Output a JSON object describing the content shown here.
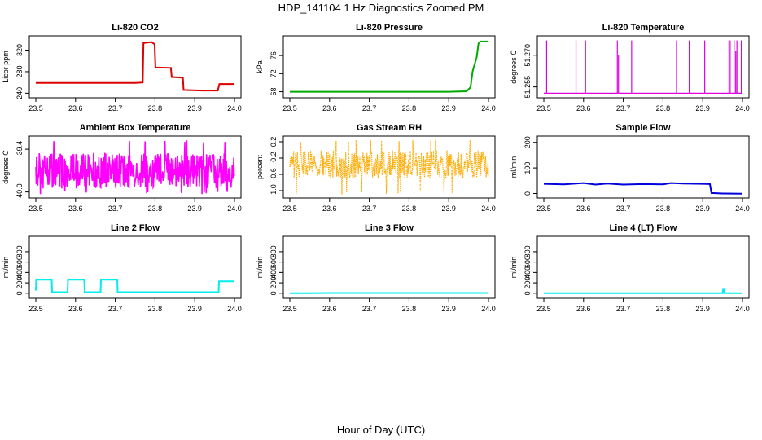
{
  "figure": {
    "title": "HDP_141104  1 Hz Diagnostics Zoomed PM",
    "xlabel": "Hour of Day (UTC)"
  },
  "chart_data": [
    {
      "type": "line",
      "title": "Li-820 CO2",
      "ylabel": "Licor ppm",
      "color": "#dd0000",
      "xlim": [
        23.5,
        24.0
      ],
      "ylim": [
        236,
        342
      ],
      "yticks": [
        240,
        280,
        320
      ],
      "xticks": [
        23.5,
        23.6,
        23.7,
        23.8,
        23.9,
        24.0
      ],
      "series": [
        {
          "x": [
            23.5,
            23.55,
            23.6,
            23.65,
            23.7,
            23.75,
            23.769,
            23.771,
            23.79,
            23.791,
            23.799,
            23.801,
            23.84,
            23.842,
            23.87,
            23.872,
            23.92,
            23.93,
            23.95,
            23.958,
            23.962,
            24.0
          ],
          "y": [
            259,
            259,
            259,
            259,
            259,
            259,
            260,
            333,
            335,
            335,
            331,
            288,
            287,
            270,
            269,
            246,
            245,
            245,
            245,
            245,
            257,
            257
          ]
        }
      ]
    },
    {
      "type": "line",
      "title": "Li-820 Pressure",
      "ylabel": "kPa",
      "color": "#00aa00",
      "xlim": [
        23.5,
        24.0
      ],
      "ylim": [
        67.2,
        79.8
      ],
      "yticks": [
        68,
        72,
        76
      ],
      "xticks": [
        23.5,
        23.6,
        23.7,
        23.8,
        23.9,
        24.0
      ],
      "series": [
        {
          "x": [
            23.5,
            23.6,
            23.7,
            23.8,
            23.9,
            23.945,
            23.955,
            23.96,
            23.965,
            23.97,
            23.975,
            23.98,
            24.0
          ],
          "y": [
            68.0,
            68.0,
            68.0,
            68.0,
            68.0,
            68.1,
            69.0,
            72.5,
            74.0,
            75.5,
            78.7,
            79.1,
            79.1
          ]
        }
      ]
    },
    {
      "type": "line",
      "title": "Li-820 Temperature",
      "ylabel": "degrees C",
      "color": "#dd00dd",
      "xlim": [
        23.5,
        24.0
      ],
      "ylim": [
        51.251,
        51.278
      ],
      "yticks": [
        51.255,
        51.27
      ],
      "ytick_labels": [
        "51.255",
        "51.270"
      ],
      "xticks": [
        23.5,
        23.6,
        23.7,
        23.8,
        23.9,
        24.0
      ],
      "baseline": 51.252,
      "spikes": [
        {
          "x": 23.507,
          "y": 51.277
        },
        {
          "x": 23.581,
          "y": 51.277
        },
        {
          "x": 23.605,
          "y": 51.277
        },
        {
          "x": 23.685,
          "y": 51.277
        },
        {
          "x": 23.688,
          "y": 51.27
        },
        {
          "x": 23.721,
          "y": 51.277
        },
        {
          "x": 23.834,
          "y": 51.277
        },
        {
          "x": 23.866,
          "y": 51.277
        },
        {
          "x": 23.905,
          "y": 51.277
        },
        {
          "x": 23.966,
          "y": 51.277
        },
        {
          "x": 23.969,
          "y": 51.277
        },
        {
          "x": 23.979,
          "y": 51.277
        },
        {
          "x": 23.983,
          "y": 51.272
        },
        {
          "x": 23.986,
          "y": 51.277
        },
        {
          "x": 23.997,
          "y": 51.277
        }
      ]
    },
    {
      "type": "line",
      "title": "Ambient Box Temperature",
      "ylabel": "degrees C",
      "color": "#ff00ff",
      "xlim": [
        23.5,
        24.0
      ],
      "ylim": [
        -40.05,
        -39.25
      ],
      "yticks": [
        -40.0,
        -39.4
      ],
      "ytick_labels": [
        "-40.0",
        "-39.4"
      ],
      "xticks": [
        23.5,
        23.6,
        23.7,
        23.8,
        23.9,
        24.0
      ],
      "noise": {
        "low": -39.95,
        "high": -39.45,
        "outlier_low": -40.03,
        "outlier_high": -39.27,
        "style": "dense"
      }
    },
    {
      "type": "line",
      "title": "Gas Stream RH",
      "ylabel": "percent",
      "color": "#ffaa00",
      "xlim": [
        23.5,
        24.0
      ],
      "ylim": [
        -1.12,
        0.28
      ],
      "yticks": [
        -1.0,
        -0.6,
        -0.2,
        0.2
      ],
      "ytick_labels": [
        "-1.0",
        "-0.6",
        "-0.2",
        "0.2"
      ],
      "xticks": [
        23.5,
        23.6,
        23.7,
        23.8,
        23.9,
        24.0
      ],
      "noise": {
        "low": -0.7,
        "high": 0.0,
        "outlier_low": -1.1,
        "outlier_high": 0.25,
        "style": "dotted"
      }
    },
    {
      "type": "line",
      "title": "Sample Flow",
      "ylabel": "ml/min",
      "color": "#0000dd",
      "xlim": [
        23.5,
        24.0
      ],
      "ylim": [
        -8,
        215
      ],
      "yticks": [
        0,
        100,
        200
      ],
      "xticks": [
        23.5,
        23.6,
        23.7,
        23.8,
        23.9,
        24.0
      ],
      "series": [
        {
          "x": [
            23.5,
            23.55,
            23.6,
            23.63,
            23.66,
            23.7,
            23.75,
            23.8,
            23.82,
            23.85,
            23.9,
            23.918,
            23.922,
            23.95,
            24.0
          ],
          "y": [
            38,
            36,
            41,
            35,
            39,
            35,
            37,
            36,
            41,
            39,
            38,
            37,
            2,
            0,
            -1
          ]
        }
      ]
    },
    {
      "type": "line",
      "title": "Line 2 Flow",
      "ylabel": "ml/min",
      "color": "#00eeee",
      "xlim": [
        23.5,
        24.0
      ],
      "ylim": [
        -50,
        1050
      ],
      "yticks": [
        0,
        200,
        400,
        600,
        800
      ],
      "xticks": [
        23.5,
        23.6,
        23.7,
        23.8,
        23.9,
        24.0
      ],
      "series": [
        {
          "x": [
            23.5,
            23.501,
            23.54,
            23.541,
            23.58,
            23.581,
            23.622,
            23.623,
            23.663,
            23.664,
            23.705,
            23.706,
            23.96,
            23.961,
            24.0
          ],
          "y": [
            50,
            260,
            260,
            20,
            20,
            260,
            260,
            20,
            20,
            260,
            260,
            20,
            20,
            230,
            230
          ]
        }
      ]
    },
    {
      "type": "line",
      "title": "Line 3 Flow",
      "ylabel": "ml/min",
      "color": "#00eeee",
      "xlim": [
        23.5,
        24.0
      ],
      "ylim": [
        -50,
        1050
      ],
      "yticks": [
        0,
        200,
        400,
        600,
        800
      ],
      "xticks": [
        23.5,
        23.6,
        23.7,
        23.8,
        23.9,
        24.0
      ],
      "series": [
        {
          "x": [
            23.5,
            23.55,
            23.6,
            23.7,
            23.8,
            23.9,
            24.0
          ],
          "y": [
            0,
            0,
            5,
            5,
            5,
            5,
            5
          ]
        }
      ]
    },
    {
      "type": "line",
      "title": "Line 4 (LT) Flow",
      "ylabel": "ml/min",
      "color": "#00eeee",
      "xlim": [
        23.5,
        24.0
      ],
      "ylim": [
        -50,
        1050
      ],
      "yticks": [
        0,
        200,
        400,
        600,
        800
      ],
      "xticks": [
        23.5,
        23.6,
        23.7,
        23.8,
        23.9,
        24.0
      ],
      "series": [
        {
          "x": [
            23.5,
            23.6,
            23.7,
            23.8,
            23.9,
            23.95,
            23.951,
            23.953,
            23.955,
            24.0
          ],
          "y": [
            0,
            0,
            0,
            0,
            0,
            0,
            70,
            70,
            0,
            0
          ]
        }
      ]
    }
  ]
}
